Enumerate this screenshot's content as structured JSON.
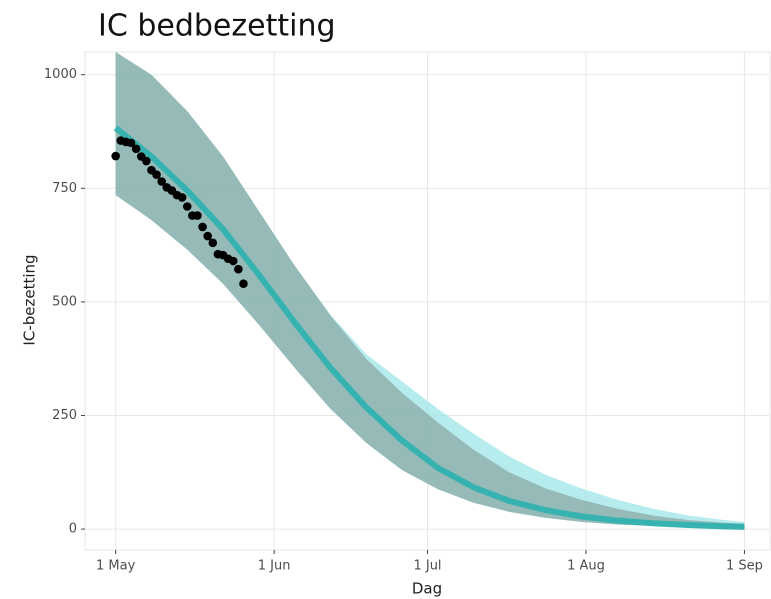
{
  "chart_data": {
    "type": "line",
    "title": "IC bedbezetting",
    "xlabel": "Dag",
    "ylabel": "IC-bezetting",
    "xlim": [
      "25 Apr",
      "6 Sep"
    ],
    "ylim": [
      -46,
      1050
    ],
    "xticks": [
      "1 May",
      "1 Jun",
      "1 Jul",
      "1 Aug",
      "1 Sep"
    ],
    "yticks": [
      0,
      250,
      500,
      750,
      1000
    ],
    "grid": true,
    "x": [
      "1 May",
      "8 May",
      "15 May",
      "22 May",
      "29 May",
      "5 Jun",
      "12 Jun",
      "19 Jun",
      "26 Jun",
      "3 Jul",
      "10 Jul",
      "17 Jul",
      "24 Jul",
      "31 Jul",
      "7 Aug",
      "14 Aug",
      "21 Aug",
      "28 Aug",
      "1 Sep"
    ],
    "series": [
      {
        "type": "area",
        "color": "#9fe6e8",
        "lower": [
          735,
          680,
          615,
          540,
          450,
          355,
          265,
          190,
          130,
          88,
          58,
          38,
          25,
          16,
          10,
          7,
          4,
          3,
          2
        ],
        "upper": [
          1050,
          1000,
          920,
          820,
          700,
          580,
          472,
          385,
          325,
          265,
          210,
          160,
          120,
          90,
          65,
          45,
          30,
          20,
          16
        ]
      },
      {
        "type": "area",
        "color": "#8aa9a6",
        "lower": [
          735,
          680,
          615,
          540,
          450,
          355,
          265,
          190,
          130,
          88,
          58,
          38,
          25,
          16,
          10,
          7,
          4,
          3,
          2
        ],
        "upper": [
          1050,
          1000,
          920,
          820,
          700,
          580,
          470,
          375,
          300,
          235,
          175,
          125,
          90,
          65,
          45,
          30,
          20,
          14,
          12
        ]
      },
      {
        "type": "line",
        "color": "#36b3b0",
        "values": [
          883,
          820,
          745,
          660,
          560,
          455,
          355,
          268,
          195,
          135,
          92,
          62,
          42,
          28,
          19,
          13,
          9,
          6,
          5
        ]
      },
      {
        "type": "scatter",
        "color": "#000000",
        "x": [
          "1 May",
          "2 May",
          "3 May",
          "4 May",
          "5 May",
          "6 May",
          "7 May",
          "8 May",
          "9 May",
          "10 May",
          "11 May",
          "12 May",
          "13 May",
          "14 May",
          "15 May",
          "16 May",
          "17 May",
          "18 May",
          "19 May",
          "20 May",
          "21 May",
          "22 May",
          "23 May",
          "24 May",
          "25 May",
          "26 May"
        ],
        "values": [
          821,
          855,
          852,
          850,
          837,
          820,
          810,
          790,
          780,
          765,
          752,
          745,
          735,
          730,
          710,
          690,
          690,
          665,
          645,
          630,
          605,
          603,
          595,
          590,
          572,
          540
        ]
      }
    ]
  }
}
